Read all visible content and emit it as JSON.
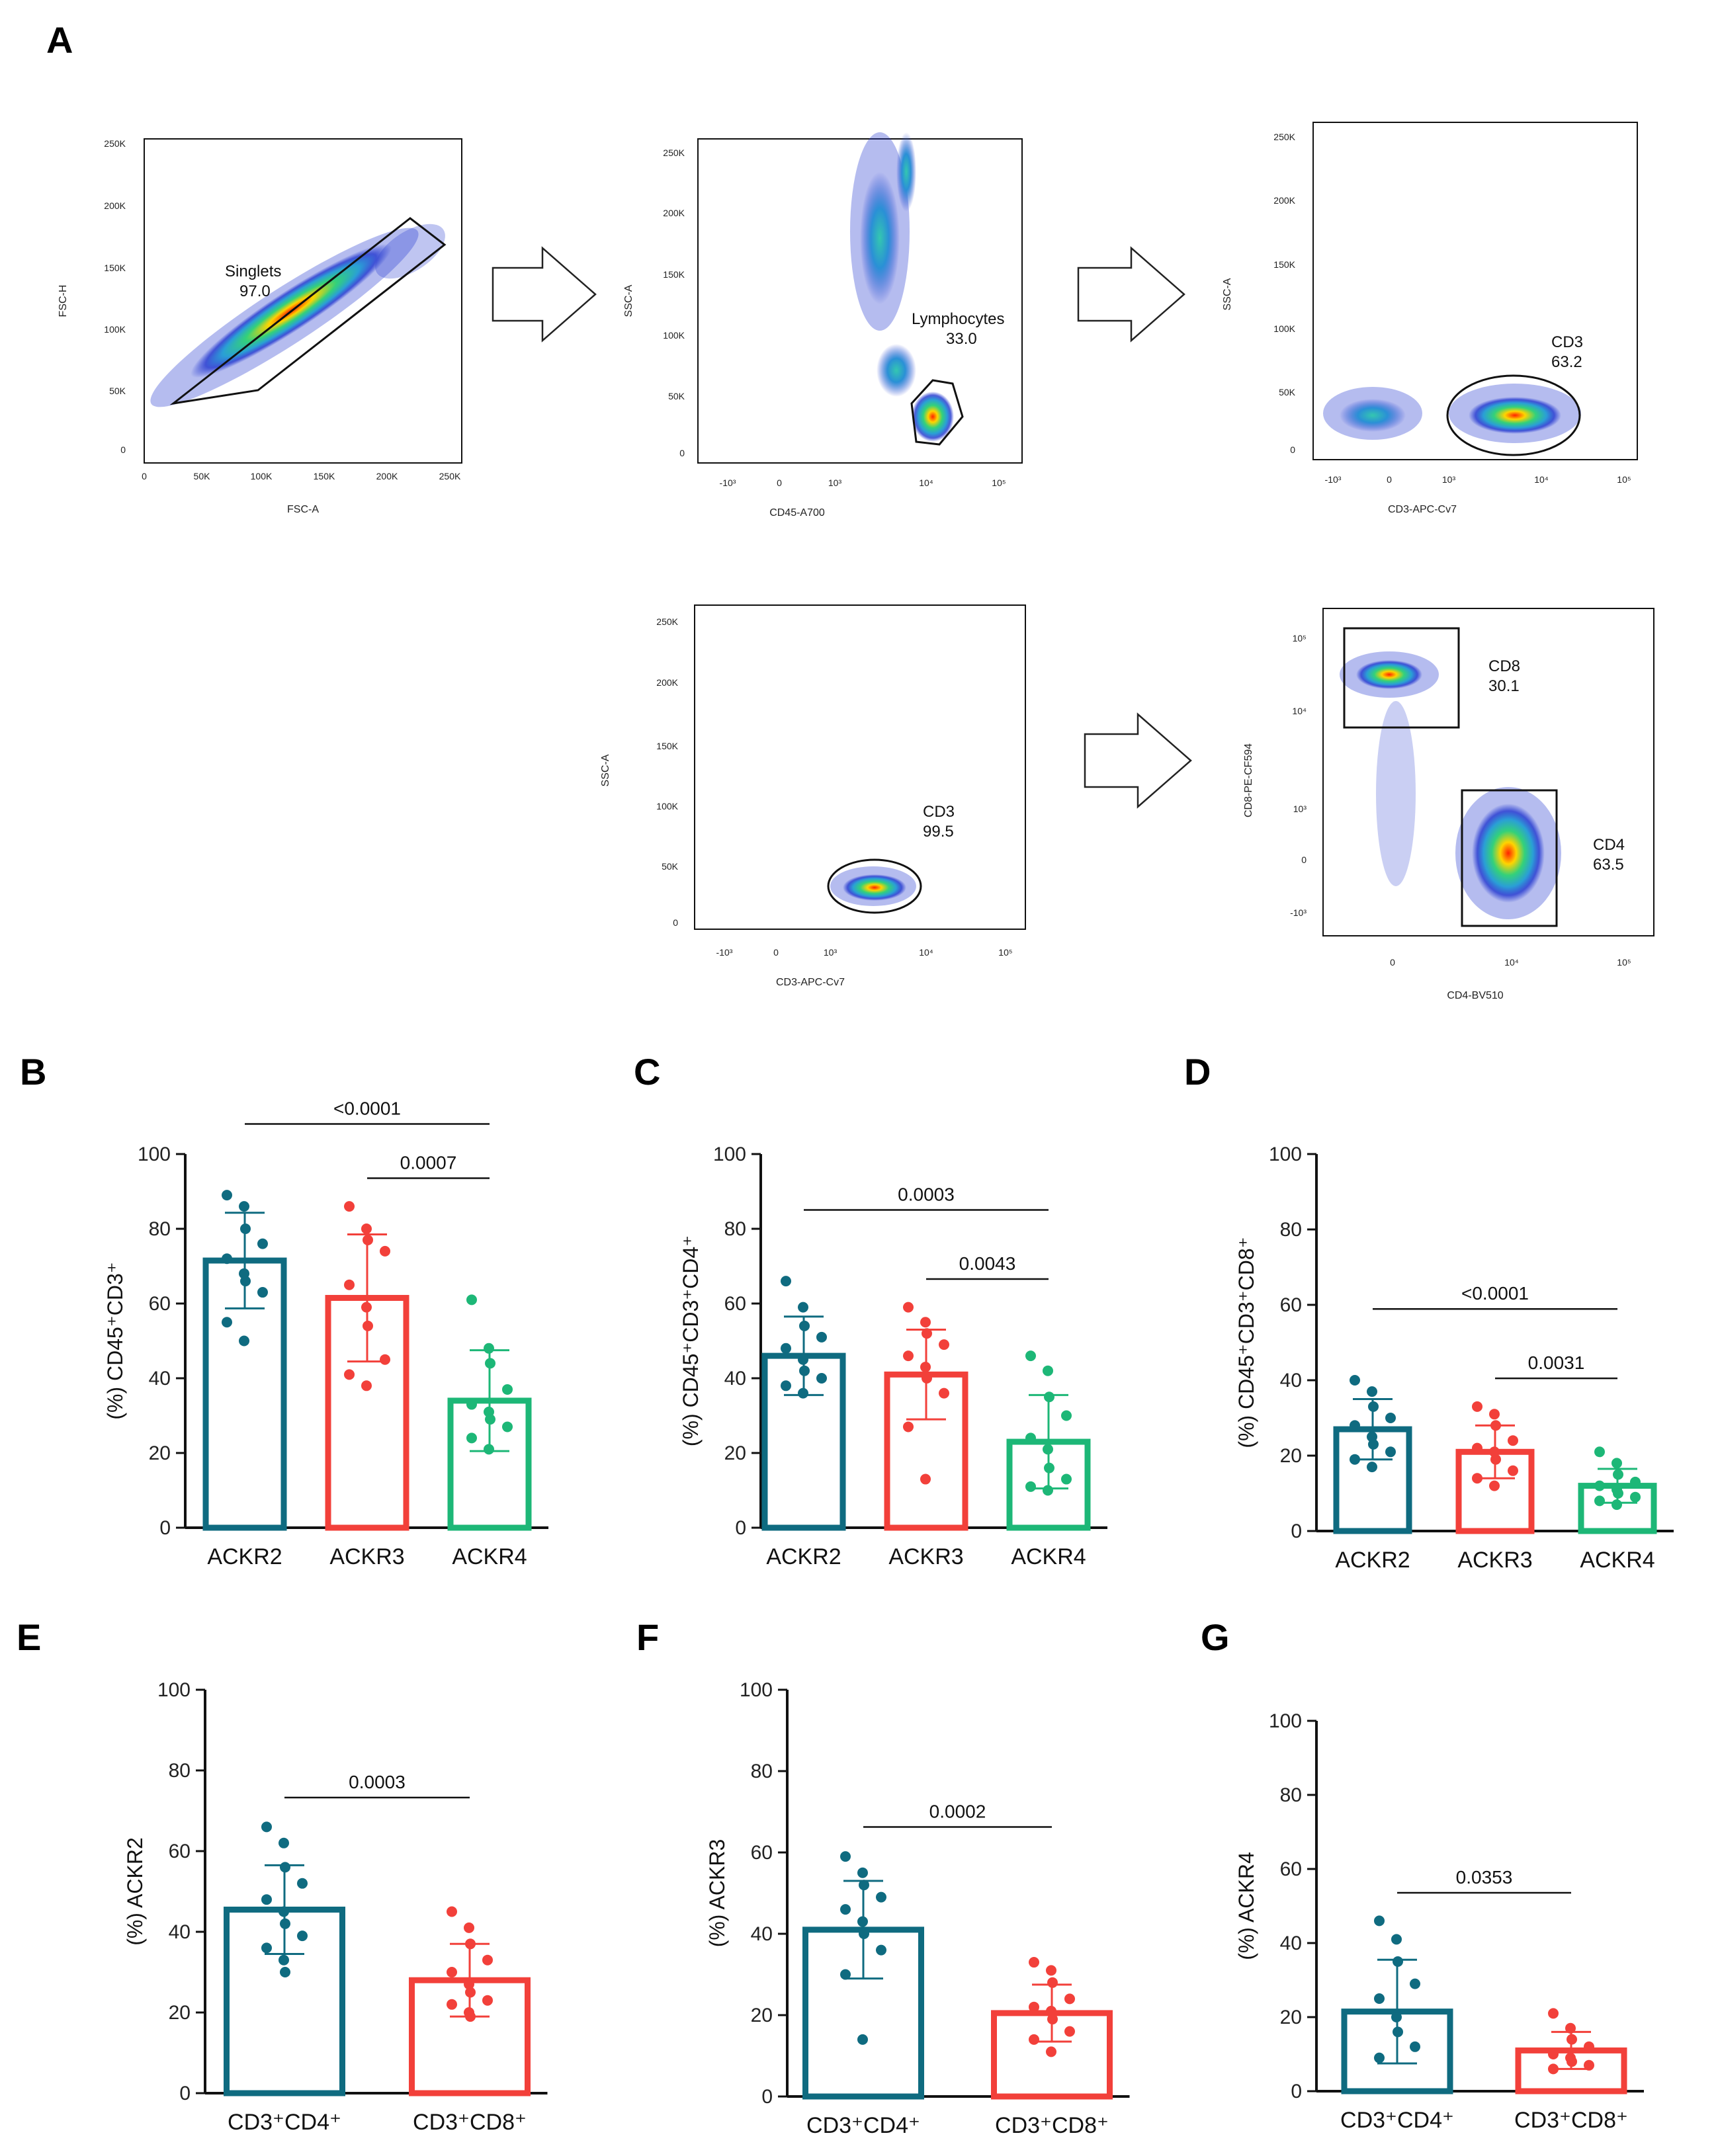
{
  "colors": {
    "ackr2": "#0f6b80",
    "ackr3": "#f2403a",
    "ackr4": "#1db777",
    "axis": "#111111"
  },
  "panel_a": {
    "label": "A",
    "plots": [
      {
        "id": "a1",
        "xlabel": "FSC-A",
        "ylabel": "FSC-H",
        "xticks": [
          "0",
          "50K",
          "100K",
          "150K",
          "200K",
          "250K"
        ],
        "yticks": [
          "0",
          "50K",
          "100K",
          "150K",
          "200K",
          "250K"
        ],
        "gate": {
          "name": "Singlets",
          "value": "97.0"
        }
      },
      {
        "id": "a2",
        "xlabel": "CD45-A700",
        "ylabel": "SSC-A",
        "xticks": [
          "-10³",
          "0",
          "10³",
          "10⁴",
          "10⁵"
        ],
        "yticks": [
          "0",
          "50K",
          "100K",
          "150K",
          "200K",
          "250K"
        ],
        "gate": {
          "name": "Lymphocytes",
          "value": "33.0"
        }
      },
      {
        "id": "a3",
        "xlabel": "CD3-APC-Cv7",
        "ylabel": "SSC-A",
        "xticks": [
          "-10³",
          "0",
          "10³",
          "10⁴",
          "10⁵"
        ],
        "yticks": [
          "0",
          "50K",
          "100K",
          "150K",
          "200K",
          "250K"
        ],
        "gate": {
          "name": "CD3",
          "value": "63.2"
        }
      },
      {
        "id": "a4",
        "xlabel": "CD3-APC-Cv7",
        "ylabel": "SSC-A",
        "xticks": [
          "-10³",
          "0",
          "10³",
          "10⁴",
          "10⁵"
        ],
        "yticks": [
          "0",
          "50K",
          "100K",
          "150K",
          "200K",
          "250K"
        ],
        "gate": {
          "name": "CD3",
          "value": "99.5"
        }
      },
      {
        "id": "a5",
        "xlabel": "CD4-BV510",
        "ylabel": "CD8-PE-CF594",
        "xticks": [
          "0",
          "10⁴",
          "10⁵"
        ],
        "yticks": [
          "-10³",
          "0",
          "10³",
          "10⁴",
          "10⁵"
        ],
        "gate": {
          "name": "CD8",
          "value": "30.1"
        },
        "gate2": {
          "name": "CD4",
          "value": "63.5"
        }
      }
    ]
  },
  "chart_data": [
    {
      "panel": "B",
      "type": "bar",
      "ylabel": "(%) CD45⁺CD3⁺",
      "ylim": [
        0,
        100
      ],
      "yticks": [
        "0",
        "20",
        "40",
        "60",
        "80",
        "100"
      ],
      "categories": [
        "ACKR2",
        "ACKR3",
        "ACKR4"
      ],
      "values": [
        71.5,
        61.5,
        34
      ],
      "sd": [
        12.8,
        17,
        13.5
      ],
      "points": [
        [
          89,
          86,
          80,
          76,
          72,
          68,
          66,
          63,
          55,
          50
        ],
        [
          86,
          80,
          77,
          74,
          65,
          59,
          54,
          45,
          41,
          38
        ],
        [
          61,
          48,
          44,
          37,
          33,
          31,
          29,
          27,
          24,
          21
        ]
      ],
      "comparisons": [
        {
          "from": 0,
          "to": 2,
          "label": "<0.0001"
        },
        {
          "from": 1,
          "to": 2,
          "label": "0.0007"
        }
      ]
    },
    {
      "panel": "C",
      "type": "bar",
      "ylabel": "(%) CD45⁺CD3⁺CD4⁺",
      "ylim": [
        0,
        100
      ],
      "yticks": [
        "0",
        "20",
        "40",
        "60",
        "80",
        "100"
      ],
      "categories": [
        "ACKR2",
        "ACKR3",
        "ACKR4"
      ],
      "values": [
        46,
        41,
        23
      ],
      "sd": [
        10.5,
        12,
        12.5
      ],
      "points": [
        [
          66,
          59,
          54,
          51,
          48,
          45,
          42,
          40,
          38,
          36
        ],
        [
          59,
          55,
          52,
          49,
          46,
          43,
          40,
          36,
          27,
          13
        ],
        [
          46,
          42,
          35,
          30,
          24,
          21,
          16,
          13,
          11,
          10
        ]
      ],
      "comparisons": [
        {
          "from": 0,
          "to": 2,
          "label": "0.0003"
        },
        {
          "from": 1,
          "to": 2,
          "label": "0.0043"
        }
      ]
    },
    {
      "panel": "D",
      "type": "bar",
      "ylabel": "(%) CD45⁺CD3⁺CD8⁺",
      "ylim": [
        0,
        100
      ],
      "yticks": [
        "0",
        "20",
        "40",
        "60",
        "80",
        "100"
      ],
      "categories": [
        "ACKR2",
        "ACKR3",
        "ACKR4"
      ],
      "values": [
        27,
        21,
        12
      ],
      "sd": [
        8,
        7,
        4.5
      ],
      "points": [
        [
          40,
          37,
          33,
          30,
          28,
          25,
          23,
          21,
          19,
          17
        ],
        [
          33,
          31,
          28,
          24,
          22,
          21,
          19,
          16,
          14,
          12
        ],
        [
          21,
          18,
          15,
          13,
          12,
          11,
          10,
          9,
          8,
          7
        ]
      ],
      "comparisons": [
        {
          "from": 0,
          "to": 2,
          "label": "<0.0001"
        },
        {
          "from": 1,
          "to": 2,
          "label": "0.0031"
        }
      ]
    },
    {
      "panel": "E",
      "type": "bar",
      "ylabel": "(%) ACKR2",
      "ylim": [
        0,
        100
      ],
      "yticks": [
        "0",
        "20",
        "40",
        "60",
        "80",
        "100"
      ],
      "categories": [
        "CD3⁺CD4⁺",
        "CD3⁺CD8⁺"
      ],
      "values": [
        45.5,
        28
      ],
      "sd": [
        11,
        9
      ],
      "points": [
        [
          66,
          62,
          56,
          52,
          48,
          45,
          42,
          39,
          36,
          33,
          30
        ],
        [
          45,
          41,
          37,
          33,
          30,
          27,
          25,
          23,
          22,
          20,
          19
        ]
      ],
      "comparisons": [
        {
          "from": 0,
          "to": 1,
          "label": "0.0003"
        }
      ]
    },
    {
      "panel": "F",
      "type": "bar",
      "ylabel": "(%) ACKR3",
      "ylim": [
        0,
        100
      ],
      "yticks": [
        "0",
        "20",
        "40",
        "60",
        "80",
        "100"
      ],
      "categories": [
        "CD3⁺CD4⁺",
        "CD3⁺CD8⁺"
      ],
      "values": [
        41,
        20.5
      ],
      "sd": [
        12,
        7
      ],
      "points": [
        [
          59,
          55,
          52,
          49,
          46,
          43,
          40,
          36,
          30,
          14
        ],
        [
          33,
          31,
          28,
          24,
          22,
          21,
          19,
          16,
          14,
          11
        ]
      ],
      "comparisons": [
        {
          "from": 0,
          "to": 1,
          "label": "0.0002"
        }
      ]
    },
    {
      "panel": "G",
      "type": "bar",
      "ylabel": "(%) ACKR4",
      "ylim": [
        0,
        100
      ],
      "yticks": [
        "0",
        "20",
        "40",
        "60",
        "80",
        "100"
      ],
      "categories": [
        "CD3⁺CD4⁺",
        "CD3⁺CD8⁺"
      ],
      "values": [
        21.5,
        11
      ],
      "sd": [
        14,
        5
      ],
      "points": [
        [
          46,
          41,
          35,
          29,
          25,
          20,
          16,
          12,
          9
        ],
        [
          21,
          17,
          14,
          12,
          10,
          9,
          8,
          7,
          6
        ]
      ],
      "comparisons": [
        {
          "from": 0,
          "to": 1,
          "label": "0.0353"
        }
      ]
    }
  ]
}
